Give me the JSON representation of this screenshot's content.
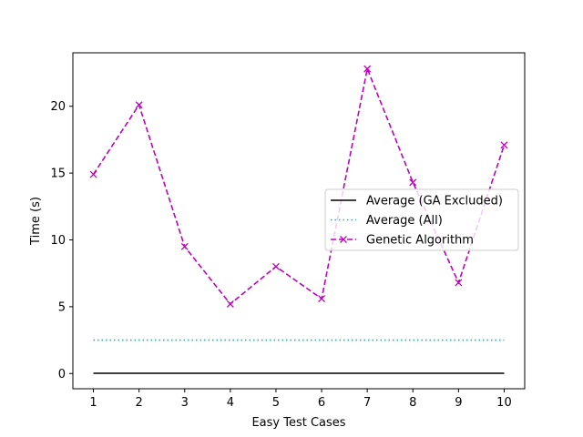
{
  "chart_data": {
    "type": "line",
    "title": "",
    "xlabel": "Easy Test Cases",
    "ylabel": "Time (s)",
    "x": [
      1,
      2,
      3,
      4,
      5,
      6,
      7,
      8,
      9,
      10
    ],
    "xticks": [
      1,
      2,
      3,
      4,
      5,
      6,
      7,
      8,
      9,
      10
    ],
    "yticks": [
      0,
      5,
      10,
      15,
      20
    ],
    "xlim": [
      0.55,
      10.45
    ],
    "ylim": [
      -1.14,
      24.0
    ],
    "grid": false,
    "legend_position": "center-right",
    "series": [
      {
        "name": "Average (GA Excluded)",
        "style": "solid",
        "color": "#000000",
        "marker": "none",
        "values": [
          0.02,
          0.02,
          0.02,
          0.02,
          0.02,
          0.02,
          0.02,
          0.02,
          0.02,
          0.02
        ]
      },
      {
        "name": "Average (All)",
        "style": "dotted",
        "color": "#00bfbf",
        "marker": "none",
        "values": [
          2.5,
          2.5,
          2.5,
          2.5,
          2.5,
          2.5,
          2.5,
          2.5,
          2.5,
          2.5
        ]
      },
      {
        "name": "Genetic Algorithm",
        "style": "dashed",
        "color": "#bf00bf",
        "marker": "x",
        "values": [
          14.9,
          20.1,
          9.5,
          5.2,
          8.0,
          5.6,
          22.8,
          14.3,
          6.8,
          17.1
        ]
      }
    ]
  }
}
